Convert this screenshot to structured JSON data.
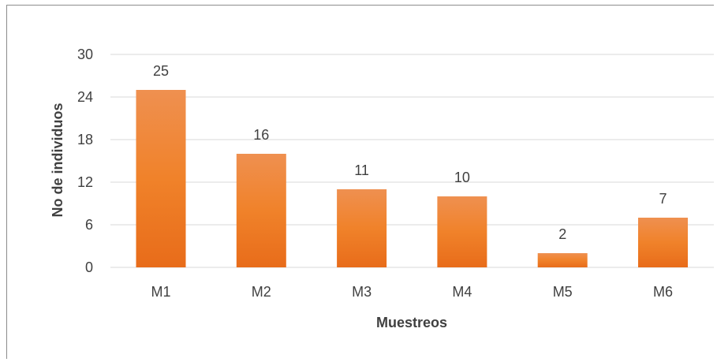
{
  "chart_data": {
    "type": "bar",
    "categories": [
      "M1",
      "M2",
      "M3",
      "M4",
      "M5",
      "M6"
    ],
    "values": [
      25,
      16,
      11,
      10,
      2,
      7
    ],
    "title": "",
    "xlabel": "Muestreos",
    "ylabel": "No de individuos",
    "ylim": [
      0,
      30
    ],
    "yticks": [
      0,
      6,
      12,
      18,
      24,
      30
    ],
    "grid": true,
    "legend": "none",
    "data_labels": true,
    "colors": {
      "bar_top": "#ef9050",
      "bar_mid": "#f0822a",
      "bar_bottom": "#e86c1a",
      "grid": "#d9d9d9",
      "text": "#404040",
      "frame": "#8c8c8c"
    }
  }
}
